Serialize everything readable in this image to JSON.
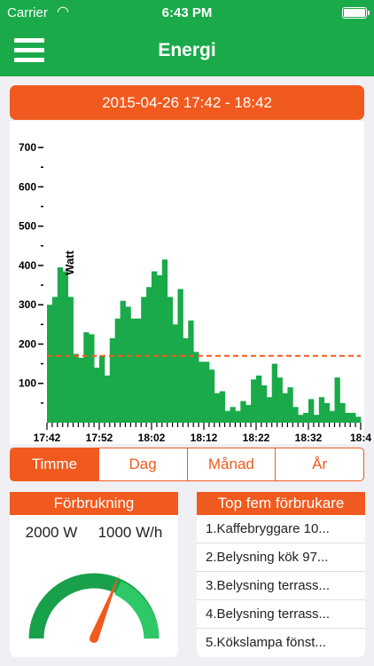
{
  "status": {
    "carrier": "Carrier",
    "time": "6:43 PM"
  },
  "nav": {
    "title": "Energi"
  },
  "date_range": "2015-04-26 17:42 - 18:42",
  "period_tabs": [
    {
      "label": "Timme",
      "active": true
    },
    {
      "label": "Dag",
      "active": false
    },
    {
      "label": "Månad",
      "active": false
    },
    {
      "label": "År",
      "active": false
    }
  ],
  "usage": {
    "title": "Förbrukning",
    "power": "2000 W",
    "rate": "1000 W/h",
    "gauge_fraction": 0.62
  },
  "top5": {
    "title": "Top fem förbrukare",
    "items": [
      "1.Kaffebryggare 10...",
      "2.Belysning kök 97...",
      "3.Belysning terrass...",
      "4.Belysning terrass...",
      "5.Kökslampa fönst..."
    ]
  },
  "colors": {
    "green": "#1aaa4a",
    "orange": "#f15a1e",
    "bar": "#1aaa4a",
    "avg_line": "#f15a1e"
  },
  "chart_data": {
    "type": "bar",
    "ylabel": "Watt",
    "ylim": [
      0,
      750
    ],
    "yticks": [
      100,
      200,
      300,
      400,
      500,
      600,
      700
    ],
    "xticks": [
      "17:42",
      "17:52",
      "18:02",
      "18:12",
      "18:22",
      "18:32",
      "18:4"
    ],
    "average": 170,
    "values": [
      300,
      320,
      395,
      385,
      320,
      175,
      165,
      230,
      225,
      140,
      170,
      120,
      215,
      265,
      310,
      295,
      265,
      265,
      320,
      345,
      385,
      375,
      415,
      320,
      250,
      340,
      215,
      260,
      180,
      155,
      155,
      135,
      75,
      80,
      30,
      40,
      30,
      55,
      45,
      110,
      120,
      95,
      65,
      150,
      115,
      75,
      90,
      40,
      20,
      25,
      60,
      20,
      65,
      50,
      30,
      115,
      50,
      25,
      25,
      15
    ]
  }
}
